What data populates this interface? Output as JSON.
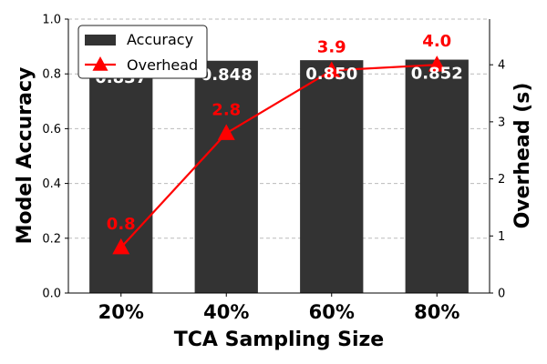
{
  "chart_data": {
    "type": "bar",
    "xlabel": "TCA Sampling Size",
    "ylabel": "Model Accuracy",
    "y2label": "Overhead (s)",
    "categories": [
      "20%",
      "40%",
      "60%",
      "80%"
    ],
    "ylim": [
      0,
      1.0
    ],
    "yticks": [
      "0.0",
      "0.2",
      "0.4",
      "0.6",
      "0.8",
      "1.0"
    ],
    "y2lim": [
      0,
      4.8
    ],
    "y2ticks": [
      "0",
      "1",
      "2",
      "3",
      "4"
    ],
    "grid": true,
    "legend_position": "top-left",
    "series": [
      {
        "name": "Accuracy",
        "type": "bar",
        "color": "#333333",
        "values": [
          0.837,
          0.848,
          0.85,
          0.852
        ],
        "labels": [
          "0.837",
          "0.848",
          "0.850",
          "0.852"
        ]
      },
      {
        "name": "Overhead",
        "type": "line",
        "axis": "right",
        "color": "#ff0000",
        "marker": "triangle",
        "values": [
          0.8,
          2.8,
          3.9,
          4.0
        ],
        "labels": [
          "0.8",
          "2.8",
          "3.9",
          "4.0"
        ]
      }
    ]
  }
}
